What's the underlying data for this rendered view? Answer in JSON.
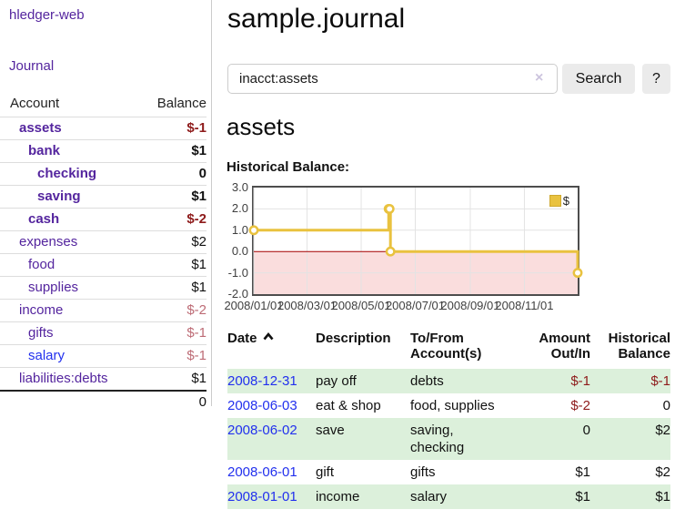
{
  "colors": {
    "purple": "#54259e",
    "blue-link": "#2230ee",
    "neg-strong": "#8e1b1b",
    "neg-soft": "#bd6b75",
    "row-green": "#dcf0db",
    "chart-yellow": "#e9c23f",
    "chart-pink": "#fadddd",
    "zero-red": "#a40000",
    "grid": "#e3e3e3",
    "border-gray": "#cccccc",
    "btn-bg": "#ebebeb"
  },
  "sidebar": {
    "brand": "hledger-web",
    "journal_link": "Journal",
    "accounts_table": {
      "headers": {
        "account": "Account",
        "balance": "Balance"
      },
      "rows": [
        {
          "name": "assets",
          "balance": "$-1",
          "level": 1,
          "bold": true,
          "balance_style": "negative-strong"
        },
        {
          "name": "bank",
          "balance": "$1",
          "level": 2,
          "bold": true,
          "balance_style": "normal"
        },
        {
          "name": "checking",
          "balance": "0",
          "level": 3,
          "bold": true,
          "balance_style": "normal"
        },
        {
          "name": "saving",
          "balance": "$1",
          "level": 3,
          "bold": true,
          "balance_style": "normal"
        },
        {
          "name": "cash",
          "balance": "$-2",
          "level": 2,
          "bold": true,
          "balance_style": "negative-strong"
        },
        {
          "name": "expenses",
          "balance": "$2",
          "level": 1,
          "bold": false,
          "balance_style": "normal"
        },
        {
          "name": "food",
          "balance": "$1",
          "level": 2,
          "bold": false,
          "balance_style": "normal"
        },
        {
          "name": "supplies",
          "balance": "$1",
          "level": 2,
          "bold": false,
          "balance_style": "normal"
        },
        {
          "name": "income",
          "balance": "$-2",
          "level": 1,
          "bold": false,
          "balance_style": "negative-soft"
        },
        {
          "name": "gifts",
          "balance": "$-1",
          "level": 2,
          "bold": false,
          "balance_style": "negative-soft"
        },
        {
          "name": "salary",
          "balance": "$-1",
          "level": 2,
          "bold": false,
          "balance_style": "negative-soft",
          "link_color": "blue"
        },
        {
          "name": "liabilities:debts",
          "balance": "$1",
          "level": 1,
          "bold": false,
          "balance_style": "normal"
        }
      ],
      "total": "0"
    }
  },
  "header": {
    "title": "sample.journal"
  },
  "search": {
    "value": "inacct:assets",
    "clear_icon": "×",
    "button_label": "Search",
    "help_label": "?"
  },
  "account_page": {
    "heading": "assets",
    "chart_label": "Historical Balance:"
  },
  "chart_data": {
    "type": "line",
    "title": "Historical Balance",
    "step": true,
    "ylim": [
      -2,
      3
    ],
    "y_ticks": [
      3.0,
      2.0,
      1.0,
      0.0,
      -1.0,
      -2.0
    ],
    "x_range": [
      "2008-01-01",
      "2008-12-31"
    ],
    "x_ticks": [
      {
        "date": "2008-01-01",
        "label": "2008/01/01"
      },
      {
        "date": "2008-03-01",
        "label": "2008/03/01"
      },
      {
        "date": "2008-05-01",
        "label": "2008/05/01"
      },
      {
        "date": "2008-07-01",
        "label": "2008/07/01"
      },
      {
        "date": "2008-09-01",
        "label": "2008/09/01"
      },
      {
        "date": "2008-11-01",
        "label": "2008/11/01"
      }
    ],
    "legend": {
      "label": "$",
      "position": "top-right"
    },
    "grid": true,
    "series": [
      {
        "name": "$",
        "points": [
          {
            "date": "2008-01-01",
            "value": 1
          },
          {
            "date": "2008-06-01",
            "value": 2
          },
          {
            "date": "2008-06-02",
            "value": 2
          },
          {
            "date": "2008-06-03",
            "value": 0
          },
          {
            "date": "2008-12-31",
            "value": -1
          }
        ]
      }
    ]
  },
  "register_table": {
    "headers": {
      "date": "Date",
      "sort_icon": "chevron-up",
      "description": "Description",
      "accounts": "To/From\nAccount(s)",
      "amount": "Amount\nOut/In",
      "balance": "Historical\nBalance"
    },
    "rows": [
      {
        "date": "2008-12-31",
        "description": "pay off",
        "accounts": "debts",
        "amount": "$-1",
        "amount_negative": true,
        "balance": "$-1",
        "balance_negative": true
      },
      {
        "date": "2008-06-03",
        "description": "eat & shop",
        "accounts": "food, supplies",
        "amount": "$-2",
        "amount_negative": true,
        "balance": "0",
        "balance_negative": false
      },
      {
        "date": "2008-06-02",
        "description": "save",
        "accounts": "saving,\nchecking",
        "amount": "0",
        "amount_negative": false,
        "balance": "$2",
        "balance_negative": false
      },
      {
        "date": "2008-06-01",
        "description": "gift",
        "accounts": "gifts",
        "amount": "$1",
        "amount_negative": false,
        "balance": "$2",
        "balance_negative": false
      },
      {
        "date": "2008-01-01",
        "description": "income",
        "accounts": "salary",
        "amount": "$1",
        "amount_negative": false,
        "balance": "$1",
        "balance_negative": false
      }
    ]
  }
}
